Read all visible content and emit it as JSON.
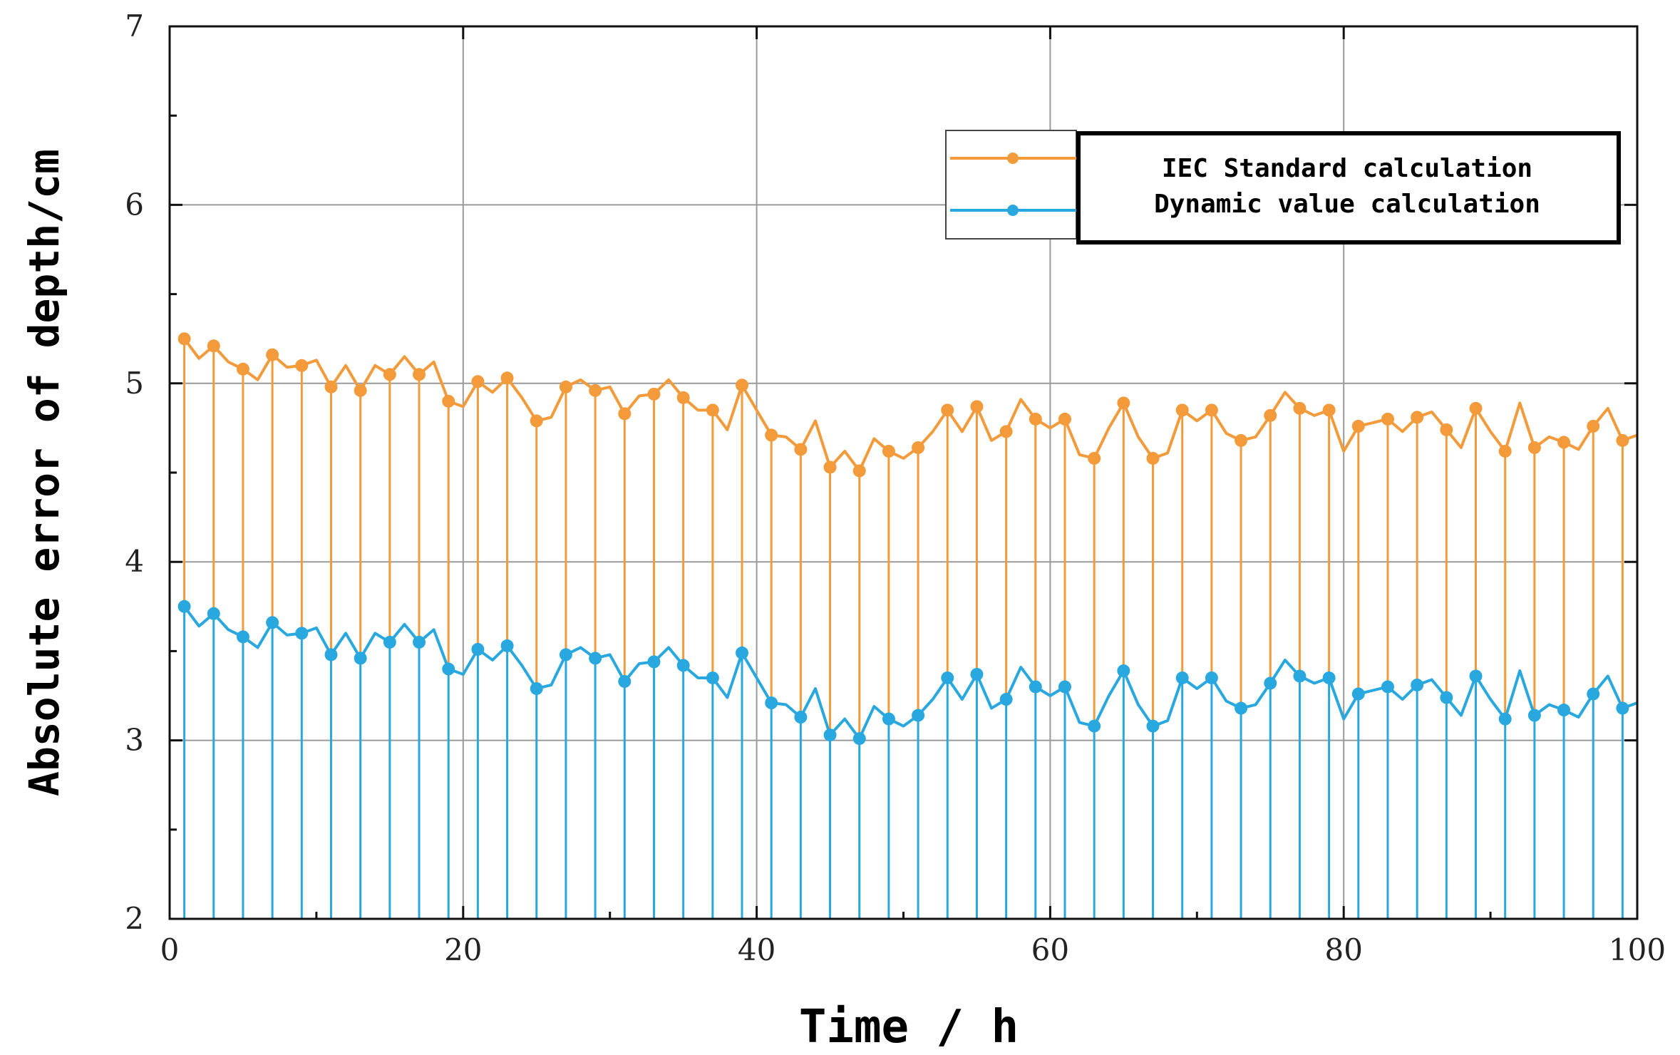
{
  "chart_data": {
    "type": "line",
    "title": "",
    "xlabel": "Time / h",
    "ylabel": "Absolute error of depth/cm",
    "xlim": [
      0,
      100
    ],
    "ylim": [
      2,
      7
    ],
    "xticks": [
      "0",
      "20",
      "40",
      "60",
      "80",
      "100"
    ],
    "yticks": [
      "2",
      "3",
      "4",
      "5",
      "6",
      "7"
    ],
    "grid": true,
    "legend_position": "top-right",
    "marker_step": 2,
    "x": [
      1,
      2,
      3,
      4,
      5,
      6,
      7,
      8,
      9,
      10,
      11,
      12,
      13,
      14,
      15,
      16,
      17,
      18,
      19,
      20,
      21,
      22,
      23,
      24,
      25,
      26,
      27,
      28,
      29,
      30,
      31,
      32,
      33,
      34,
      35,
      36,
      37,
      38,
      39,
      40,
      41,
      42,
      43,
      44,
      45,
      46,
      47,
      48,
      49,
      50,
      51,
      52,
      53,
      54,
      55,
      56,
      57,
      58,
      59,
      60,
      61,
      62,
      63,
      64,
      65,
      66,
      67,
      68,
      69,
      70,
      71,
      72,
      73,
      74,
      75,
      76,
      77,
      78,
      79,
      80,
      81,
      82,
      83,
      84,
      85,
      86,
      87,
      88,
      89,
      90,
      91,
      92,
      93,
      94,
      95,
      96,
      97,
      98,
      99,
      100
    ],
    "series": [
      {
        "name": "IEC Standard calculation",
        "color": "#f39a3a",
        "values": [
          5.25,
          5.14,
          5.21,
          5.12,
          5.08,
          5.02,
          5.16,
          5.09,
          5.1,
          5.13,
          4.98,
          5.1,
          4.96,
          5.1,
          5.05,
          5.15,
          5.05,
          5.12,
          4.9,
          4.87,
          5.01,
          4.95,
          5.03,
          4.92,
          4.79,
          4.81,
          4.98,
          5.02,
          4.96,
          4.98,
          4.83,
          4.93,
          4.94,
          5.02,
          4.92,
          4.85,
          4.85,
          4.74,
          4.99,
          4.85,
          4.71,
          4.7,
          4.63,
          4.79,
          4.53,
          4.62,
          4.51,
          4.69,
          4.62,
          4.58,
          4.64,
          4.73,
          4.85,
          4.73,
          4.87,
          4.68,
          4.73,
          4.91,
          4.8,
          4.75,
          4.8,
          4.6,
          4.58,
          4.75,
          4.89,
          4.7,
          4.58,
          4.61,
          4.85,
          4.79,
          4.85,
          4.72,
          4.68,
          4.7,
          4.82,
          4.95,
          4.86,
          4.82,
          4.85,
          4.62,
          4.76,
          4.78,
          4.8,
          4.73,
          4.81,
          4.84,
          4.74,
          4.64,
          4.86,
          4.73,
          4.62,
          4.89,
          4.64,
          4.7,
          4.67,
          4.63,
          4.76,
          4.86,
          4.68,
          4.71
        ]
      },
      {
        "name": "Dynamic value calculation",
        "color": "#29a8e0",
        "values": [
          3.75,
          3.64,
          3.71,
          3.62,
          3.58,
          3.52,
          3.66,
          3.59,
          3.6,
          3.63,
          3.48,
          3.6,
          3.46,
          3.6,
          3.55,
          3.65,
          3.55,
          3.62,
          3.4,
          3.37,
          3.51,
          3.45,
          3.53,
          3.42,
          3.29,
          3.31,
          3.48,
          3.52,
          3.46,
          3.48,
          3.33,
          3.43,
          3.44,
          3.52,
          3.42,
          3.35,
          3.35,
          3.24,
          3.49,
          3.35,
          3.21,
          3.2,
          3.13,
          3.29,
          3.03,
          3.12,
          3.01,
          3.19,
          3.12,
          3.08,
          3.14,
          3.23,
          3.35,
          3.23,
          3.37,
          3.18,
          3.23,
          3.41,
          3.3,
          3.25,
          3.3,
          3.1,
          3.08,
          3.25,
          3.39,
          3.2,
          3.08,
          3.11,
          3.35,
          3.29,
          3.35,
          3.22,
          3.18,
          3.2,
          3.32,
          3.45,
          3.36,
          3.32,
          3.35,
          3.12,
          3.26,
          3.28,
          3.3,
          3.23,
          3.31,
          3.34,
          3.24,
          3.14,
          3.36,
          3.23,
          3.12,
          3.39,
          3.14,
          3.2,
          3.17,
          3.13,
          3.26,
          3.36,
          3.18,
          3.21
        ]
      }
    ]
  }
}
